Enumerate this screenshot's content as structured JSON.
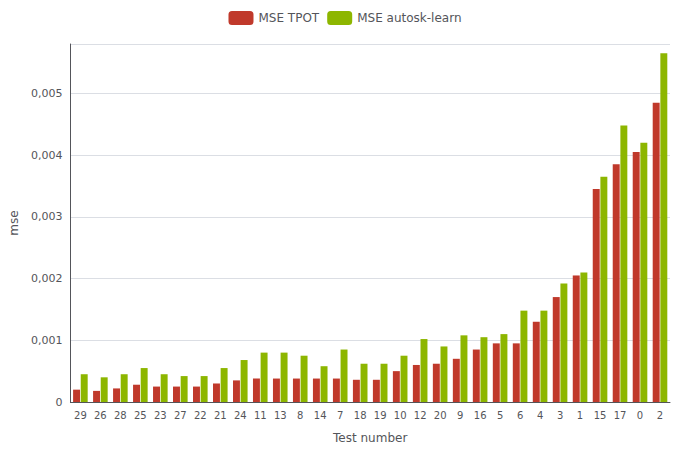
{
  "chart_data": {
    "type": "bar",
    "categories": [
      "29",
      "26",
      "28",
      "25",
      "23",
      "27",
      "22",
      "21",
      "24",
      "11",
      "13",
      "8",
      "14",
      "7",
      "18",
      "19",
      "10",
      "12",
      "20",
      "9",
      "16",
      "5",
      "6",
      "4",
      "3",
      "1",
      "15",
      "17",
      "0",
      "2"
    ],
    "series": [
      {
        "name": "MSE TPOT",
        "color": "#C0392B",
        "values": [
          0.0002,
          0.00018,
          0.00022,
          0.00028,
          0.00025,
          0.00025,
          0.00025,
          0.0003,
          0.00035,
          0.00038,
          0.00038,
          0.00038,
          0.00038,
          0.00038,
          0.00036,
          0.00036,
          0.0005,
          0.0006,
          0.00062,
          0.0007,
          0.00085,
          0.00095,
          0.00095,
          0.0013,
          0.0017,
          0.00205,
          0.00345,
          0.00385,
          0.00405,
          0.00485
        ]
      },
      {
        "name": "MSE autosk-learn",
        "color": "#8DB600",
        "values": [
          0.00045,
          0.0004,
          0.00045,
          0.00055,
          0.00045,
          0.00042,
          0.00042,
          0.00055,
          0.00068,
          0.0008,
          0.0008,
          0.00075,
          0.00058,
          0.00085,
          0.00062,
          0.00062,
          0.00075,
          0.00102,
          0.0009,
          0.00108,
          0.00105,
          0.0011,
          0.00148,
          0.00148,
          0.00192,
          0.0021,
          0.00365,
          0.00448,
          0.0042,
          0.00565
        ]
      }
    ],
    "xlabel": "Test number",
    "ylabel": "mse",
    "ylim": [
      0,
      0.0058
    ],
    "yticks": [
      0,
      {
        "value": 0.001,
        "label": "0,001"
      },
      {
        "value": 0.002,
        "label": "0,002"
      },
      {
        "value": 0.003,
        "label": "0,003"
      },
      {
        "value": 0.004,
        "label": "0,004"
      },
      {
        "value": 0.005,
        "label": "0,005"
      }
    ],
    "grid": true,
    "legend": "top"
  }
}
